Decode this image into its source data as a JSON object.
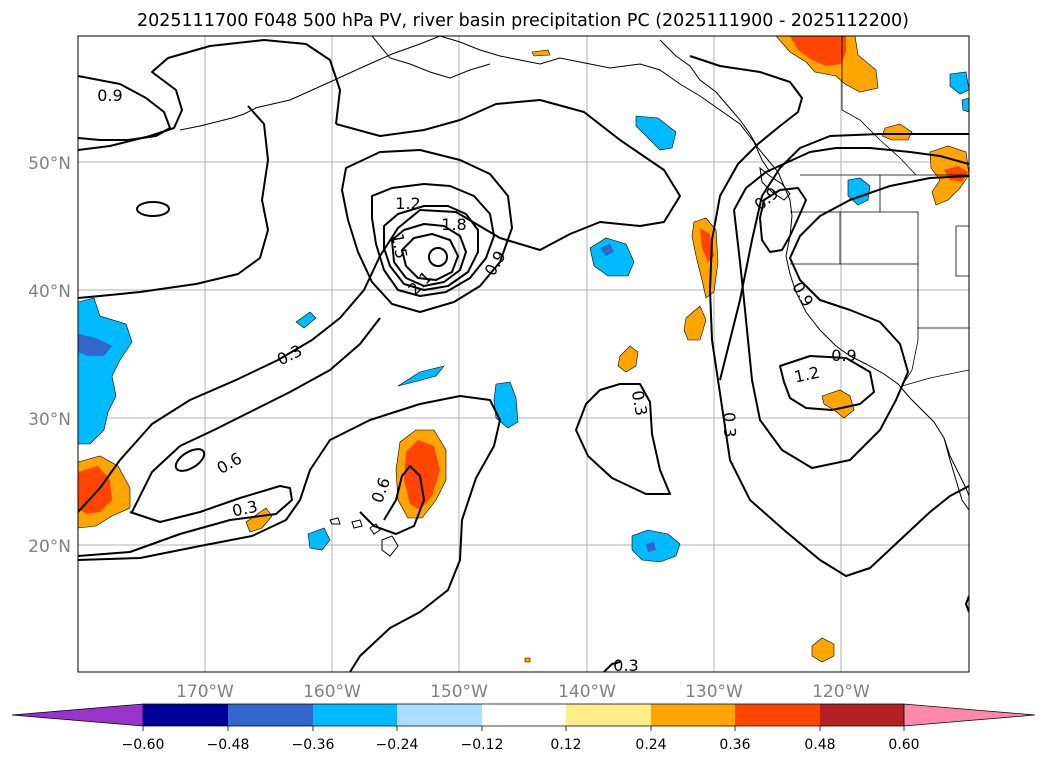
{
  "title": "2025111700 F048 500 hPa PV, river basin precipitation PC (2025111900 - 2025112200)",
  "lat_labels": [
    "50°N",
    "40°N",
    "30°N",
    "20°N"
  ],
  "lon_labels": [
    "170°W",
    "160°W",
    "150°W",
    "140°W",
    "130°W",
    "120°W"
  ],
  "contour_labels": {
    "nw_09": "0.9",
    "low_12": "1.2",
    "low_15": "1.5",
    "low_18": "1.8",
    "low_21": "2.1",
    "low_09": "0.9",
    "band_03": "0.3",
    "band_06": "0.6",
    "south_03": "0.3",
    "trough_06": "0.6",
    "mid_03": "0.3",
    "coast_03": "0.3",
    "bottom_03": "0.3",
    "coast_09a": "0.9",
    "coast_09b": "0.9",
    "coast_09c": "0.9",
    "coast_12": "1.2"
  },
  "colorbar": {
    "ticks": [
      "−0.60",
      "−0.48",
      "−0.36",
      "−0.24",
      "−0.12",
      "0.12",
      "0.24",
      "0.36",
      "0.48",
      "0.60"
    ],
    "colors": [
      "#9933cc",
      "#000099",
      "#3366cc",
      "#00bbff",
      "#aaddff",
      "#ffffff",
      "#ffee88",
      "#ffa500",
      "#ff4500",
      "#b22222",
      "#ff88aa"
    ]
  },
  "map_colors": {
    "orange": "#ffa500",
    "red_orange": "#ff4500",
    "cyan": "#00bbff",
    "blue": "#3366cc"
  }
}
